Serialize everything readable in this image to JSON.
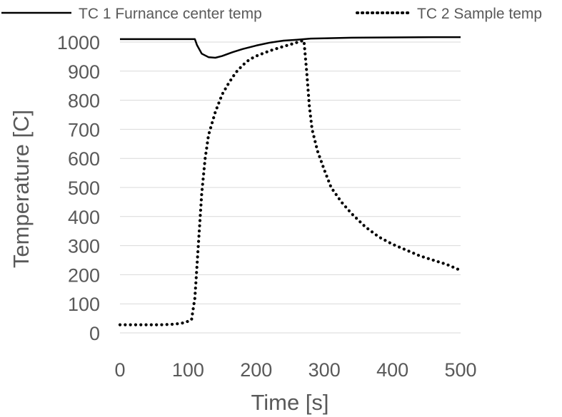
{
  "chart_data": {
    "type": "line",
    "title": "",
    "xlabel": "Time [s]",
    "ylabel": "Temperature [C]",
    "xlim": [
      0,
      500
    ],
    "ylim": [
      0,
      1000
    ],
    "x_ticks": [
      0,
      100,
      200,
      300,
      400,
      500
    ],
    "y_ticks": [
      0,
      100,
      200,
      300,
      400,
      500,
      600,
      700,
      800,
      900,
      1000
    ],
    "grid": "horizontal",
    "legend_position": "top",
    "series": [
      {
        "name": "TC 1 Furnance center temp",
        "style": "solid",
        "color": "#000000",
        "points": [
          [
            0,
            1010
          ],
          [
            110,
            1010
          ],
          [
            113,
            990
          ],
          [
            120,
            960
          ],
          [
            130,
            948
          ],
          [
            140,
            946
          ],
          [
            150,
            952
          ],
          [
            165,
            965
          ],
          [
            180,
            976
          ],
          [
            200,
            988
          ],
          [
            220,
            998
          ],
          [
            240,
            1005
          ],
          [
            260,
            1008
          ],
          [
            280,
            1012
          ],
          [
            300,
            1013
          ],
          [
            340,
            1015
          ],
          [
            400,
            1016
          ],
          [
            460,
            1017
          ],
          [
            500,
            1017
          ]
        ]
      },
      {
        "name": "TC 2 Sample temp",
        "style": "dotted",
        "color": "#000000",
        "points": [
          [
            0,
            28
          ],
          [
            60,
            28
          ],
          [
            80,
            30
          ],
          [
            95,
            35
          ],
          [
            105,
            45
          ],
          [
            110,
            120
          ],
          [
            115,
            300
          ],
          [
            120,
            480
          ],
          [
            125,
            600
          ],
          [
            130,
            680
          ],
          [
            140,
            760
          ],
          [
            150,
            820
          ],
          [
            160,
            860
          ],
          [
            170,
            895
          ],
          [
            180,
            920
          ],
          [
            190,
            940
          ],
          [
            200,
            952
          ],
          [
            220,
            970
          ],
          [
            240,
            985
          ],
          [
            255,
            995
          ],
          [
            265,
            1003
          ],
          [
            270,
            1005
          ],
          [
            274,
            900
          ],
          [
            278,
            780
          ],
          [
            282,
            700
          ],
          [
            290,
            625
          ],
          [
            300,
            560
          ],
          [
            310,
            500
          ],
          [
            325,
            450
          ],
          [
            340,
            410
          ],
          [
            360,
            365
          ],
          [
            380,
            330
          ],
          [
            400,
            305
          ],
          [
            420,
            285
          ],
          [
            440,
            265
          ],
          [
            460,
            250
          ],
          [
            480,
            235
          ],
          [
            500,
            215
          ]
        ]
      }
    ]
  }
}
